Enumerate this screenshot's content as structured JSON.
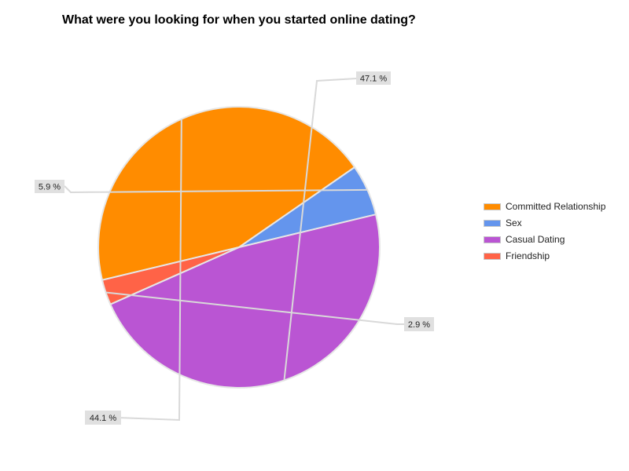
{
  "chart_data": {
    "type": "pie",
    "title": "What were you looking for when you started online dating?",
    "legend_position": "right",
    "categories": [
      "Committed Relationship",
      "Sex",
      "Casual Dating",
      "Friendship"
    ],
    "values": [
      44.1,
      5.9,
      47.1,
      2.9
    ],
    "labels": [
      "44.1 %",
      "5.9 %",
      "47.1 %",
      "2.9 %"
    ],
    "colors": [
      "#ff8c00",
      "#6495ed",
      "#ba55d3",
      "#ff6347"
    ]
  }
}
